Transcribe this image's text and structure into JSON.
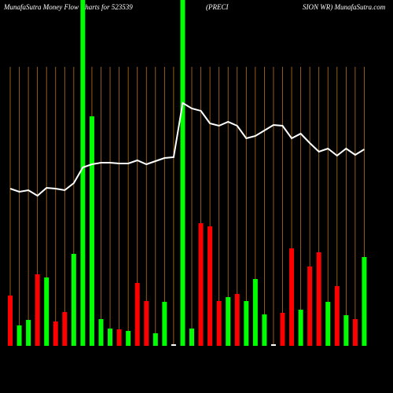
{
  "chart_data": {
    "type": "bar",
    "title_parts": [
      "MunafaSutra  Money Flow  Charts for 523539",
      "(PRECI",
      "SION  WR) MunafaSutra.com"
    ],
    "values": [
      64,
      26,
      33,
      91,
      87,
      31,
      43,
      117,
      440,
      292,
      34,
      22,
      21,
      19,
      80,
      57,
      16,
      56,
      2,
      440,
      22,
      156,
      152,
      57,
      62,
      66,
      57,
      85,
      40,
      2,
      42,
      124,
      46,
      101,
      119,
      56,
      76,
      39,
      34,
      113
    ],
    "colors": [
      "#ff0000",
      "#00ff00",
      "#00ff00",
      "#ff0000",
      "#00ff00",
      "#ff0000",
      "#ff0000",
      "#00ff00",
      "#00ff00",
      "#00ff00",
      "#00ff00",
      "#00ff00",
      "#ff0000",
      "#00ff00",
      "#ff0000",
      "#ff0000",
      "#00ff00",
      "#00ff00",
      "#ffffff",
      "#00ff00",
      "#00ff00",
      "#ff0000",
      "#ff0000",
      "#ff0000",
      "#00ff00",
      "#ff0000",
      "#00ff00",
      "#00ff00",
      "#00ff00",
      "#ffffff",
      "#ff0000",
      "#ff0000",
      "#00ff00",
      "#ff0000",
      "#ff0000",
      "#00ff00",
      "#ff0000",
      "#00ff00",
      "#ff0000",
      "#00ff00"
    ],
    "line_values": [
      200,
      196,
      198,
      191,
      201,
      200,
      198,
      207,
      227,
      231,
      233,
      233,
      232,
      232,
      236,
      231,
      235,
      239,
      240,
      309,
      302,
      299,
      283,
      280,
      285,
      280,
      264,
      267,
      274,
      281,
      280,
      264,
      270,
      258,
      247,
      251,
      242,
      251,
      243,
      250
    ],
    "line_color": "#ffffff",
    "ylim": [
      0,
      440
    ],
    "grid_color": "#b8741a"
  }
}
